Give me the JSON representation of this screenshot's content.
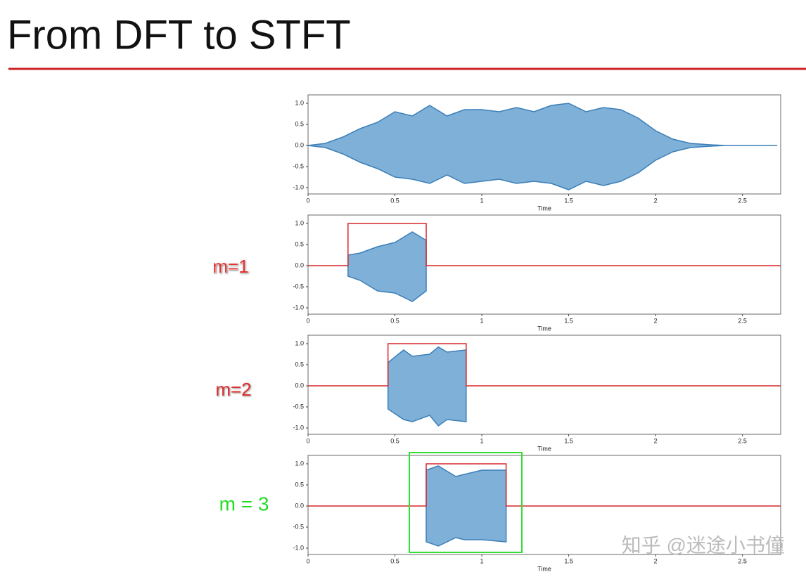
{
  "title": "From DFT to STFT",
  "labels": [
    "m=1",
    "m=2",
    "m = 3"
  ],
  "watermark": "知乎 @迷途小书僮",
  "chart_data": [
    {
      "type": "area",
      "xlabel": "Time",
      "xlim": [
        0,
        2.72
      ],
      "ylim": [
        -1.15,
        1.2
      ],
      "xticks": [
        0,
        0.5,
        1,
        1.5,
        2,
        2.5
      ],
      "yticks": [
        {
          "value": 1,
          "label": "1.0"
        },
        {
          "value": 0.5,
          "label": "0.5"
        },
        {
          "value": 0,
          "label": "0.0"
        },
        {
          "value": -0.5,
          "label": "-0.5"
        },
        {
          "value": -1,
          "label": "-1.0"
        }
      ],
      "signal": {
        "color": "#7fb0d8",
        "x": [
          0,
          0.1,
          0.2,
          0.3,
          0.4,
          0.5,
          0.6,
          0.7,
          0.8,
          0.9,
          1,
          1.1,
          1.2,
          1.3,
          1.4,
          1.5,
          1.6,
          1.7,
          1.8,
          1.9,
          2,
          2.1,
          2.2,
          2.3,
          2.4,
          2.5,
          2.6,
          2.7
        ],
        "upper": [
          0,
          0.05,
          0.2,
          0.4,
          0.55,
          0.8,
          0.7,
          0.95,
          0.7,
          0.85,
          0.85,
          0.8,
          0.9,
          0.8,
          0.95,
          1.0,
          0.8,
          0.9,
          0.85,
          0.65,
          0.35,
          0.15,
          0.05,
          0.02,
          0,
          0,
          0,
          0
        ],
        "lower": [
          0,
          -0.05,
          -0.2,
          -0.4,
          -0.55,
          -0.75,
          -0.8,
          -0.9,
          -0.7,
          -0.9,
          -0.85,
          -0.8,
          -0.9,
          -0.85,
          -0.9,
          -1.05,
          -0.85,
          -0.95,
          -0.85,
          -0.65,
          -0.35,
          -0.15,
          -0.05,
          -0.02,
          0,
          0,
          0,
          0
        ]
      }
    },
    {
      "type": "area",
      "xlabel": "Time",
      "xlim": [
        0,
        2.72
      ],
      "ylim": [
        -1.15,
        1.2
      ],
      "xticks": [
        0,
        0.5,
        1,
        1.5,
        2,
        2.5
      ],
      "yticks": [
        {
          "value": 1,
          "label": "1.0"
        },
        {
          "value": 0.5,
          "label": "0.5"
        },
        {
          "value": 0,
          "label": "0.0"
        },
        {
          "value": -0.5,
          "label": "-0.5"
        },
        {
          "value": -1,
          "label": "-1.0"
        }
      ],
      "signal": {
        "color": "#7fb0d8",
        "x": [
          0.23,
          0.3,
          0.4,
          0.5,
          0.6,
          0.68
        ],
        "upper": [
          0.25,
          0.3,
          0.45,
          0.55,
          0.8,
          0.6
        ],
        "lower": [
          -0.25,
          -0.35,
          -0.6,
          -0.65,
          -0.85,
          -0.6
        ]
      },
      "window": {
        "color": "#d62728",
        "x": [
          0,
          0.23,
          0.23,
          0.68,
          0.68,
          2.72
        ],
        "values": [
          0,
          0,
          1,
          1,
          0,
          0
        ]
      }
    },
    {
      "type": "area",
      "xlabel": "Time",
      "xlim": [
        0,
        2.72
      ],
      "ylim": [
        -1.15,
        1.2
      ],
      "xticks": [
        0,
        0.5,
        1,
        1.5,
        2,
        2.5
      ],
      "yticks": [
        {
          "value": 1,
          "label": "1.0"
        },
        {
          "value": 0.5,
          "label": "0.5"
        },
        {
          "value": 0,
          "label": "0.0"
        },
        {
          "value": -0.5,
          "label": "-0.5"
        },
        {
          "value": -1,
          "label": "-1.0"
        }
      ],
      "signal": {
        "color": "#7fb0d8",
        "x": [
          0.46,
          0.55,
          0.6,
          0.7,
          0.75,
          0.8,
          0.91
        ],
        "upper": [
          0.55,
          0.85,
          0.7,
          0.75,
          0.92,
          0.8,
          0.85
        ],
        "lower": [
          -0.55,
          -0.8,
          -0.85,
          -0.7,
          -0.95,
          -0.8,
          -0.85
        ]
      },
      "window": {
        "color": "#d62728",
        "x": [
          0,
          0.46,
          0.46,
          0.91,
          0.91,
          2.72
        ],
        "values": [
          0,
          0,
          1,
          1,
          0,
          0
        ]
      }
    },
    {
      "type": "area",
      "xlabel": "Time",
      "xlim": [
        0,
        2.72
      ],
      "ylim": [
        -1.15,
        1.2
      ],
      "xticks": [
        0,
        0.5,
        1,
        1.5,
        2,
        2.5
      ],
      "yticks": [
        {
          "value": 1,
          "label": "1.0"
        },
        {
          "value": 0.5,
          "label": "0.5"
        },
        {
          "value": 0,
          "label": "0.0"
        },
        {
          "value": -0.5,
          "label": "-0.5"
        },
        {
          "value": -1,
          "label": "-1.0"
        }
      ],
      "signal": {
        "color": "#7fb0d8",
        "x": [
          0.68,
          0.75,
          0.85,
          0.9,
          1.0,
          1.14
        ],
        "upper": [
          0.85,
          0.95,
          0.7,
          0.75,
          0.85,
          0.85
        ],
        "lower": [
          -0.85,
          -0.95,
          -0.75,
          -0.8,
          -0.8,
          -0.85
        ]
      },
      "window": {
        "color": "#d62728",
        "x": [
          0,
          0.68,
          0.68,
          1.14,
          1.14,
          2.72
        ],
        "values": [
          0,
          0,
          1,
          1,
          0,
          0
        ]
      }
    }
  ]
}
